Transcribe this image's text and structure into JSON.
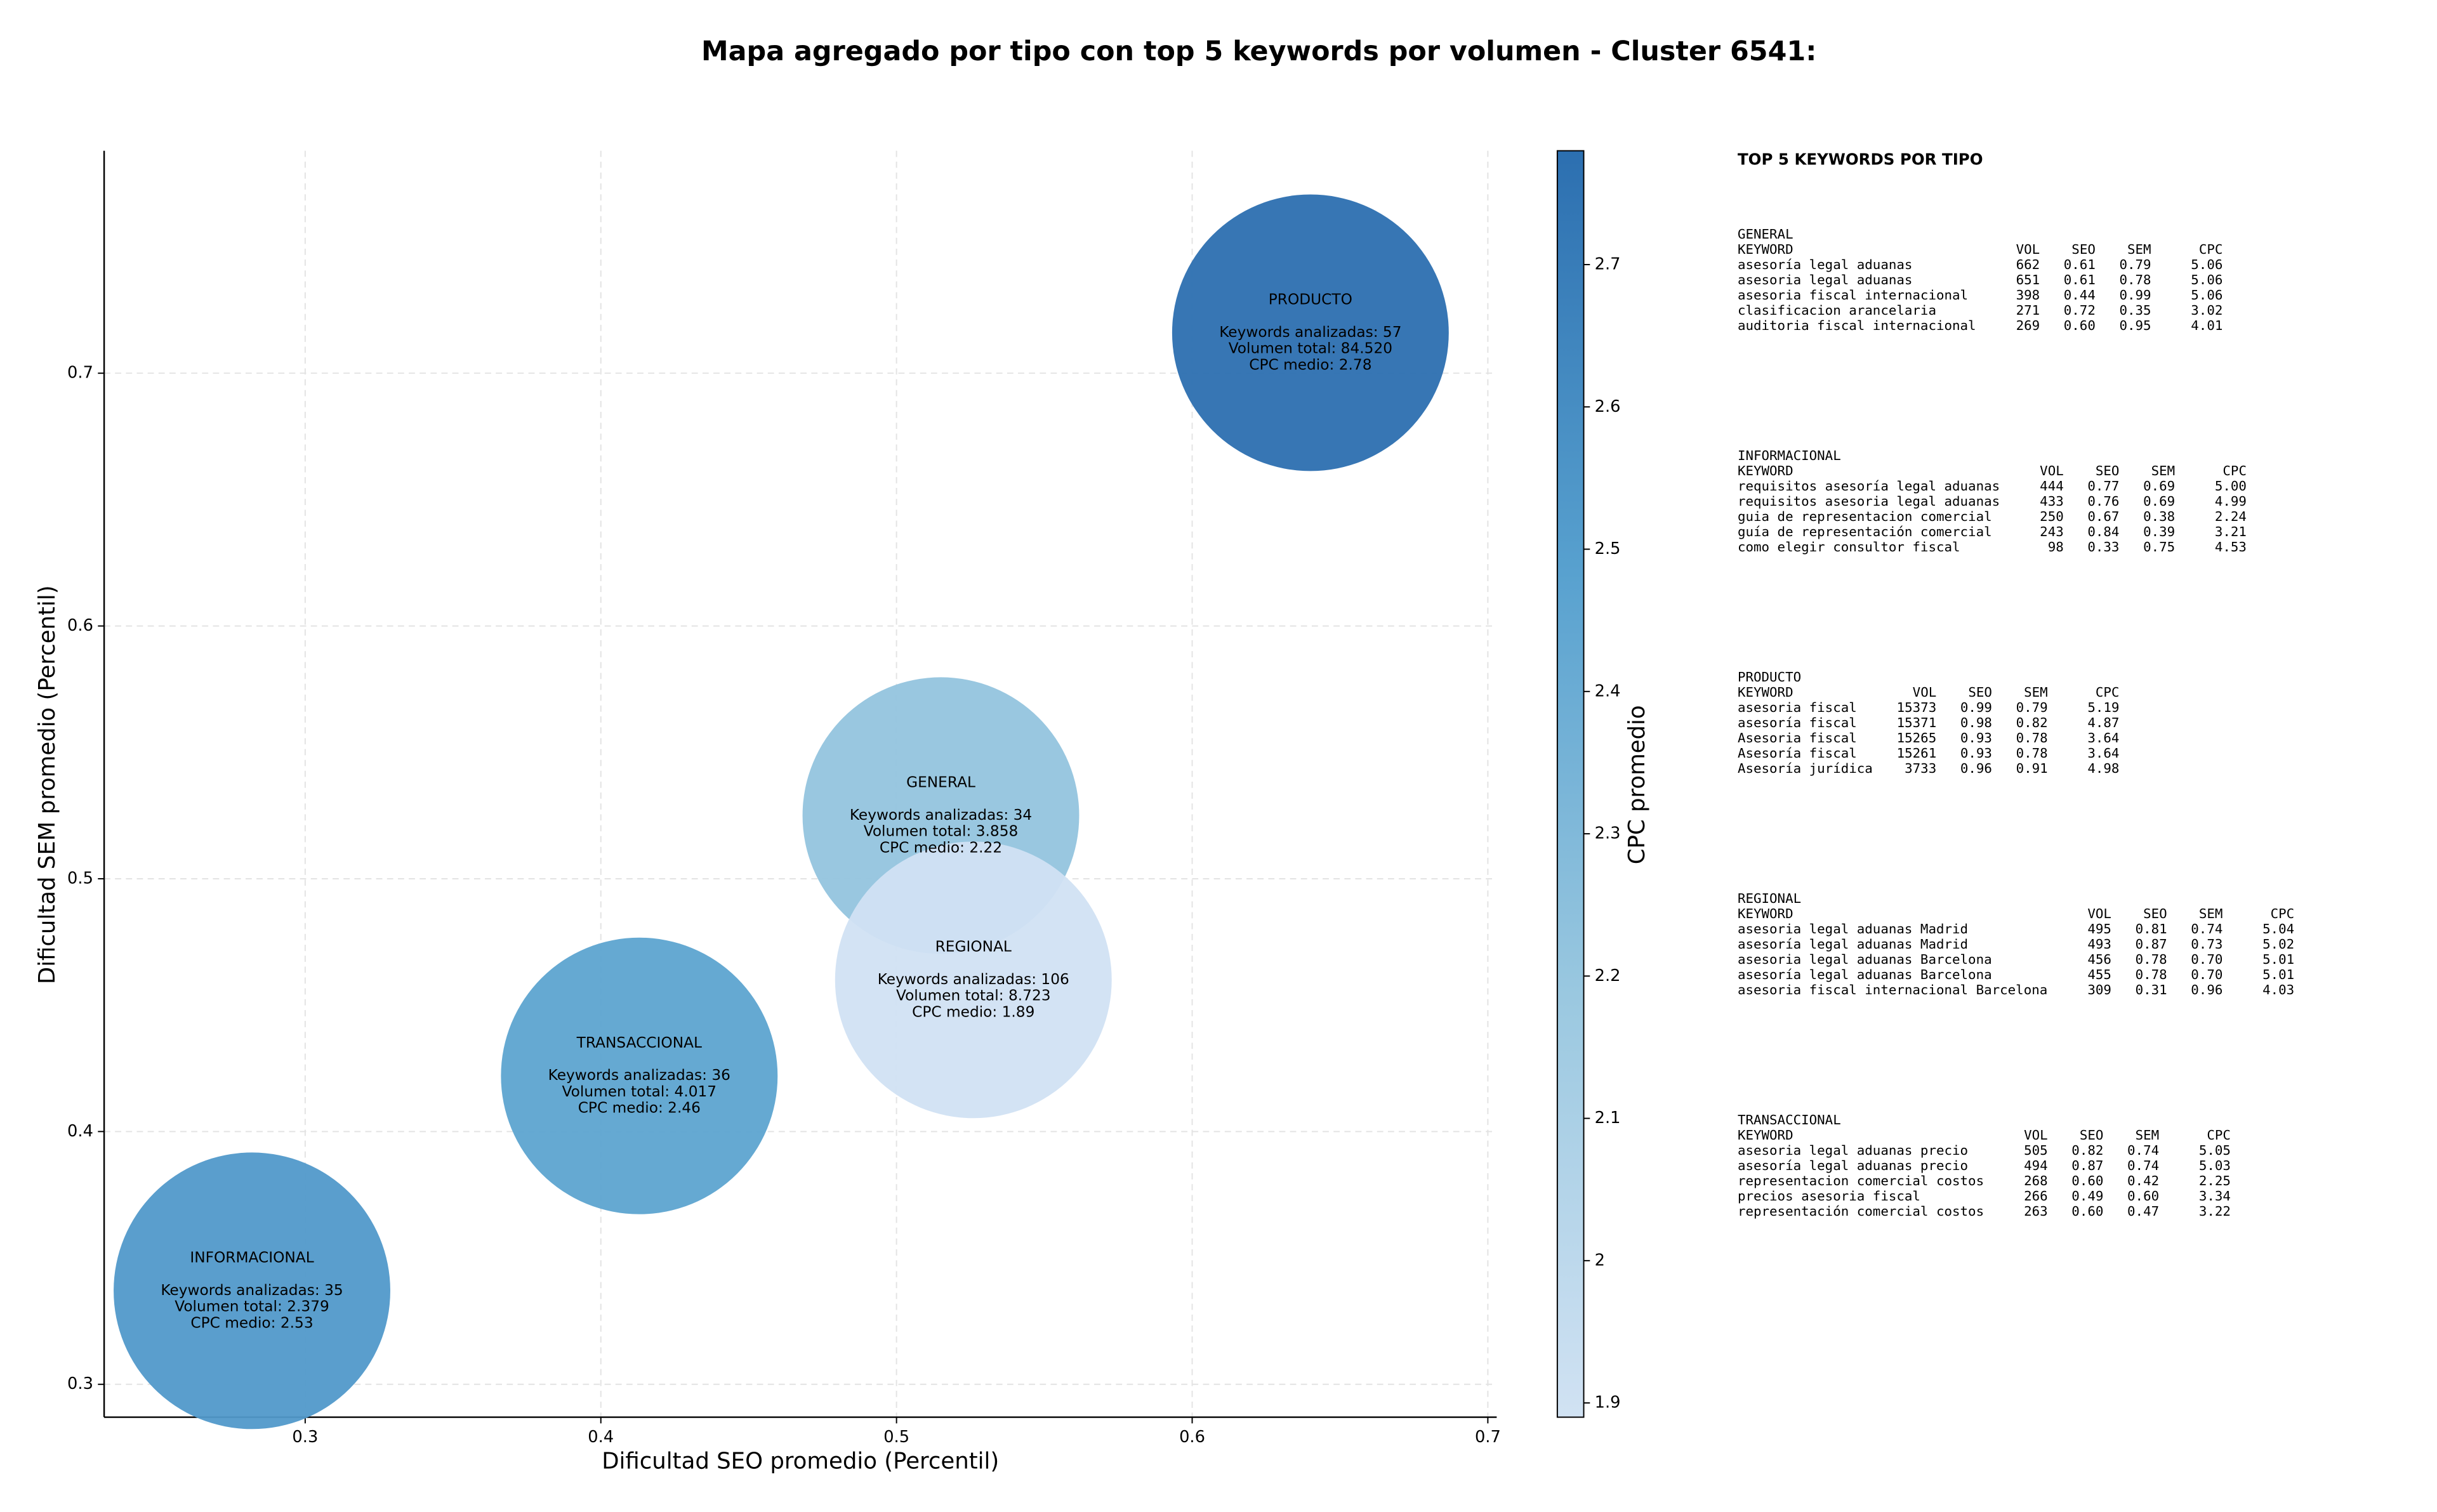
{
  "chart_data": {
    "type": "bubble",
    "title": "Mapa agregado por tipo con top 5 keywords por volumen - Cluster 6541:",
    "xlabel": "Dificultad SEO promedio (Percentil)",
    "ylabel": "Dificultad SEM promedio (Percentil)",
    "categories": [
      "GENERAL",
      "INFORMACIONAL",
      "PRODUCTO",
      "REGIONAL",
      "TRANSACCIONAL"
    ],
    "x": [
      0.515,
      0.282,
      0.64,
      0.526,
      0.413
    ],
    "y": [
      0.525,
      0.337,
      0.716,
      0.46,
      0.422
    ],
    "color_values": [
      2.22,
      2.53,
      2.78,
      1.89,
      2.46
    ],
    "annotations": [
      [
        "Keywords analizadas: 34",
        "Volumen total: 3.858",
        "CPC medio: 2.22"
      ],
      [
        "Keywords analizadas: 35",
        "Volumen total: 2.379",
        "CPC medio: 2.53"
      ],
      [
        "Keywords analizadas: 57",
        "Volumen total: 84.520",
        "CPC medio: 2.78"
      ],
      [
        "Keywords analizadas: 106",
        "Volumen total: 8.723",
        "CPC medio: 1.89"
      ],
      [
        "Keywords analizadas: 36",
        "Volumen total: 4.017",
        "CPC medio: 2.46"
      ]
    ],
    "xlim": [
      0.232,
      0.703
    ],
    "ylim": [
      0.287,
      0.788
    ],
    "xticks": [
      0.3,
      0.4,
      0.5,
      0.6,
      0.7
    ],
    "yticks": [
      0.3,
      0.4,
      0.5,
      0.6,
      0.7
    ],
    "grid": true,
    "colorbar": {
      "label": "CPC promedio",
      "lim": [
        1.89,
        2.78
      ],
      "ticks": [
        1.9,
        2.0,
        2.1,
        2.2,
        2.3,
        2.4,
        2.5,
        2.6,
        2.7
      ],
      "colormap": [
        "#d1e2f3",
        "#9ac8e0",
        "#58a1cf",
        "#2c6fb0"
      ]
    }
  },
  "keyword_panel": {
    "title": "TOP 5 KEYWORDS POR TIPO",
    "sections": [
      {
        "name": "GENERAL",
        "header": [
          "KEYWORD",
          "VOL",
          "SEO",
          "SEM",
          "CPC"
        ],
        "rows": [
          [
            "asesoría legal aduanas",
            "662",
            "0.61",
            "0.79",
            "5.06"
          ],
          [
            "asesoria legal aduanas",
            "651",
            "0.61",
            "0.78",
            "5.06"
          ],
          [
            "asesoria fiscal internacional",
            "398",
            "0.44",
            "0.99",
            "5.06"
          ],
          [
            "clasificacion arancelaria",
            "271",
            "0.72",
            "0.35",
            "3.02"
          ],
          [
            "auditoria fiscal internacional",
            "269",
            "0.60",
            "0.95",
            "4.01"
          ]
        ]
      },
      {
        "name": "INFORMACIONAL",
        "header": [
          "KEYWORD",
          "VOL",
          "SEO",
          "SEM",
          "CPC"
        ],
        "rows": [
          [
            "requisitos asesoría legal aduanas",
            "444",
            "0.77",
            "0.69",
            "5.00"
          ],
          [
            "requisitos asesoria legal aduanas",
            "433",
            "0.76",
            "0.69",
            "4.99"
          ],
          [
            "guia de representacion comercial",
            "250",
            "0.67",
            "0.38",
            "2.24"
          ],
          [
            "guía de representación comercial",
            "243",
            "0.84",
            "0.39",
            "3.21"
          ],
          [
            "como elegir consultor fiscal",
            "98",
            "0.33",
            "0.75",
            "4.53"
          ]
        ]
      },
      {
        "name": "PRODUCTO",
        "header": [
          "KEYWORD",
          "VOL",
          "SEO",
          "SEM",
          "CPC"
        ],
        "rows": [
          [
            "asesoria fiscal",
            "15373",
            "0.99",
            "0.79",
            "5.19"
          ],
          [
            "asesoría fiscal",
            "15371",
            "0.98",
            "0.82",
            "4.87"
          ],
          [
            "Asesoria fiscal",
            "15265",
            "0.93",
            "0.78",
            "3.64"
          ],
          [
            "Asesoría fiscal",
            "15261",
            "0.93",
            "0.78",
            "3.64"
          ],
          [
            "Asesoría jurídica",
            "3733",
            "0.96",
            "0.91",
            "4.98"
          ]
        ]
      },
      {
        "name": "REGIONAL",
        "header": [
          "KEYWORD",
          "VOL",
          "SEO",
          "SEM",
          "CPC"
        ],
        "rows": [
          [
            "asesoria legal aduanas Madrid",
            "495",
            "0.81",
            "0.74",
            "5.04"
          ],
          [
            "asesoría legal aduanas Madrid",
            "493",
            "0.87",
            "0.73",
            "5.02"
          ],
          [
            "asesoria legal aduanas Barcelona",
            "456",
            "0.78",
            "0.70",
            "5.01"
          ],
          [
            "asesoría legal aduanas Barcelona",
            "455",
            "0.78",
            "0.70",
            "5.01"
          ],
          [
            "asesoria fiscal internacional Barcelona",
            "309",
            "0.31",
            "0.96",
            "4.03"
          ]
        ]
      },
      {
        "name": "TRANSACCIONAL",
        "header": [
          "KEYWORD",
          "VOL",
          "SEO",
          "SEM",
          "CPC"
        ],
        "rows": [
          [
            "asesoria legal aduanas precio",
            "505",
            "0.82",
            "0.74",
            "5.05"
          ],
          [
            "asesoría legal aduanas precio",
            "494",
            "0.87",
            "0.74",
            "5.03"
          ],
          [
            "representacion comercial costos",
            "268",
            "0.60",
            "0.42",
            "2.25"
          ],
          [
            "precios asesoria fiscal",
            "266",
            "0.49",
            "0.60",
            "3.34"
          ],
          [
            "representación comercial costos",
            "263",
            "0.60",
            "0.47",
            "3.22"
          ]
        ]
      }
    ]
  }
}
